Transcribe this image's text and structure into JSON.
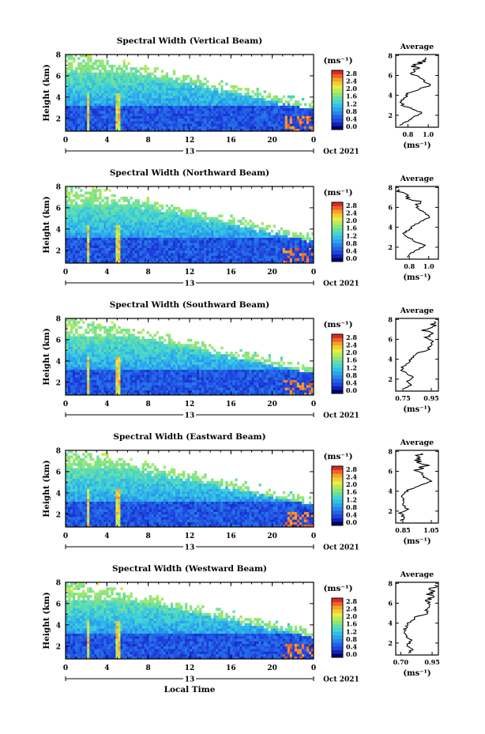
{
  "chart_data": [
    {
      "type": "heatmap",
      "title": "Spectral Width (Vertical Beam)",
      "ylabel": "Height (km)",
      "ylim": [
        0.8,
        8
      ],
      "yticks": [
        "2",
        "4",
        "6",
        "8"
      ],
      "xlim": [
        0,
        24
      ],
      "xticks": [
        "0",
        "4",
        "8",
        "12",
        "16",
        "20",
        "0"
      ],
      "date_day": "13",
      "date_month": "Oct 2021",
      "colorbar": {
        "unit": "(ms⁻¹)",
        "ticks": [
          "0.0",
          "0.4",
          "0.8",
          "1.2",
          "1.6",
          "2.0",
          "2.4",
          "2.8"
        ],
        "range": [
          0,
          2.8
        ]
      },
      "average": {
        "title": "Average",
        "xlabel": "(ms⁻¹)",
        "xticks": [
          "0.8",
          "1.0"
        ],
        "xlim": [
          0.68,
          1.1
        ],
        "heights": [
          1.0,
          1.4,
          1.8,
          2.2,
          2.6,
          3.0,
          3.4,
          3.8,
          4.2,
          4.6,
          5.0,
          5.4,
          5.8,
          6.2,
          6.6,
          7.0,
          7.4,
          7.8
        ],
        "values": [
          0.72,
          0.8,
          0.84,
          0.95,
          0.85,
          0.75,
          0.73,
          0.78,
          0.8,
          0.9,
          1.02,
          0.97,
          0.92,
          0.86,
          0.9,
          0.86,
          0.95,
          0.98
        ]
      }
    },
    {
      "type": "heatmap",
      "title": "Spectral Width (Northward Beam)",
      "ylabel": "Height (km)",
      "ylim": [
        0.8,
        8
      ],
      "yticks": [
        "2",
        "4",
        "6",
        "8"
      ],
      "xlim": [
        0,
        24
      ],
      "xticks": [
        "0",
        "4",
        "8",
        "12",
        "16",
        "20",
        "0"
      ],
      "date_day": "13",
      "date_month": "Oct 2021",
      "colorbar": {
        "unit": "(ms⁻¹)",
        "ticks": [
          "0.0",
          "0.4",
          "0.8",
          "1.2",
          "1.6",
          "2.0",
          "2.4",
          "2.8"
        ],
        "range": [
          0,
          2.8
        ]
      },
      "average": {
        "title": "Average",
        "xlabel": "(ms⁻¹)",
        "xticks": [
          "0.8",
          "1.0"
        ],
        "xlim": [
          0.66,
          1.1
        ],
        "heights": [
          1.0,
          1.4,
          1.8,
          2.2,
          2.6,
          3.0,
          3.4,
          3.8,
          4.2,
          4.6,
          5.0,
          5.4,
          5.8,
          6.2,
          6.6,
          7.0,
          7.4,
          7.8
        ],
        "values": [
          0.78,
          0.82,
          0.9,
          0.97,
          0.86,
          0.78,
          0.74,
          0.8,
          0.84,
          0.92,
          1.02,
          0.96,
          0.9,
          0.86,
          0.88,
          0.78,
          0.72,
          0.68
        ]
      }
    },
    {
      "type": "heatmap",
      "title": "Spectral Width (Southward Beam)",
      "ylabel": "Height (km)",
      "ylim": [
        0.8,
        8
      ],
      "yticks": [
        "2",
        "4",
        "6",
        "8"
      ],
      "xlim": [
        0,
        24
      ],
      "xticks": [
        "0",
        "4",
        "8",
        "12",
        "16",
        "20",
        "0"
      ],
      "date_day": "13",
      "date_month": "Oct 2021",
      "colorbar": {
        "unit": "(ms⁻¹)",
        "ticks": [
          "0.0",
          "0.4",
          "0.8",
          "1.2",
          "1.6",
          "2.0",
          "2.4",
          "2.8"
        ],
        "range": [
          0,
          2.8
        ]
      },
      "average": {
        "title": "Average",
        "xlabel": "(ms⁻¹)",
        "xticks": [
          "0.75",
          "0.95"
        ],
        "xlim": [
          0.7,
          1.0
        ],
        "heights": [
          1.0,
          1.4,
          1.8,
          2.2,
          2.6,
          3.0,
          3.4,
          3.8,
          4.2,
          4.6,
          5.0,
          5.4,
          5.8,
          6.2,
          6.6,
          7.0,
          7.4,
          7.8
        ],
        "values": [
          0.76,
          0.8,
          0.78,
          0.82,
          0.77,
          0.74,
          0.76,
          0.8,
          0.82,
          0.86,
          0.93,
          0.95,
          0.96,
          0.92,
          0.94,
          0.9,
          0.96,
          0.97
        ]
      }
    },
    {
      "type": "heatmap",
      "title": "Spectral Width (Eastward Beam)",
      "ylabel": "Height (km)",
      "ylim": [
        0.8,
        8
      ],
      "yticks": [
        "2",
        "4",
        "6",
        "8"
      ],
      "xlim": [
        0,
        24
      ],
      "xticks": [
        "0",
        "4",
        "8",
        "12",
        "16",
        "20",
        "0"
      ],
      "date_day": "13",
      "date_month": "Oct 2021",
      "colorbar": {
        "unit": "(ms⁻¹)",
        "ticks": [
          "0.0",
          "0.4",
          "0.8",
          "1.2",
          "1.6",
          "2.0",
          "2.4",
          "2.8"
        ],
        "range": [
          0,
          2.8
        ]
      },
      "average": {
        "title": "Average",
        "xlabel": "(ms⁻¹)",
        "xticks": [
          "0.85",
          "1.05"
        ],
        "xlim": [
          0.8,
          1.1
        ],
        "heights": [
          1.0,
          1.4,
          1.8,
          2.2,
          2.6,
          3.0,
          3.4,
          3.8,
          4.2,
          4.6,
          5.0,
          5.4,
          5.8,
          6.2,
          6.6,
          7.0,
          7.4,
          7.8
        ],
        "values": [
          0.84,
          0.86,
          0.83,
          0.88,
          0.85,
          0.86,
          0.84,
          0.86,
          0.9,
          0.97,
          1.05,
          1.0,
          0.98,
          0.95,
          1.02,
          0.96,
          0.94,
          0.98
        ]
      }
    },
    {
      "type": "heatmap",
      "title": "Spectral Width (Westward Beam)",
      "ylabel": "Height (km)",
      "ylim": [
        0.8,
        8
      ],
      "yticks": [
        "2",
        "4",
        "6",
        "8"
      ],
      "xlim": [
        0,
        24
      ],
      "xticks": [
        "0",
        "4",
        "8",
        "12",
        "16",
        "20",
        "0"
      ],
      "date_day": "13",
      "date_month": "Oct 2021",
      "xlabel": "Local Time",
      "colorbar": {
        "unit": "(ms⁻¹)",
        "ticks": [
          "0.0",
          "0.4",
          "0.8",
          "1.2",
          "1.6",
          "2.0",
          "2.4",
          "2.8"
        ],
        "range": [
          0,
          2.8
        ]
      },
      "average": {
        "title": "Average",
        "xlabel": "(ms⁻¹)",
        "xticks": [
          "0.70",
          "0.95"
        ],
        "xlim": [
          0.66,
          1.0
        ],
        "heights": [
          1.0,
          1.4,
          1.8,
          2.2,
          2.6,
          3.0,
          3.4,
          3.8,
          4.2,
          4.6,
          5.0,
          5.4,
          5.8,
          6.2,
          6.6,
          7.0,
          7.4,
          7.8
        ],
        "values": [
          0.76,
          0.8,
          0.74,
          0.79,
          0.75,
          0.72,
          0.73,
          0.75,
          0.78,
          0.82,
          0.92,
          0.9,
          0.94,
          0.91,
          0.95,
          0.93,
          0.96,
          0.97
        ]
      }
    }
  ]
}
